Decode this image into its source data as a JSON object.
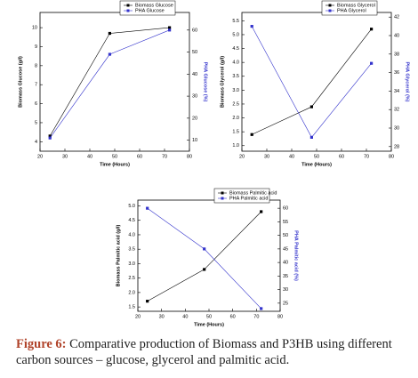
{
  "chart_data": [
    {
      "type": "line",
      "x": [
        24,
        48,
        72
      ],
      "xlim": [
        20,
        80
      ],
      "xticks": [
        20,
        30,
        40,
        50,
        60,
        70,
        80
      ],
      "xlabel": "Time (Hours)",
      "ylabel": "Biomass Glucose (g/l)",
      "y2label": "PHA Glucose (%)",
      "ylim": [
        3.5,
        10.8
      ],
      "yticks": [
        4,
        5,
        6,
        7,
        8,
        9,
        10
      ],
      "y2lim": [
        5,
        68
      ],
      "y2ticks": [
        10,
        20,
        30,
        40,
        50,
        60
      ],
      "series": [
        {
          "name": "Biomass Glucose",
          "color": "#000000",
          "values": [
            4.3,
            9.7,
            10.0
          ]
        },
        {
          "name": "PHA Glucose",
          "color": "#3333cc",
          "axis": "y2",
          "values": [
            11,
            49,
            60
          ]
        }
      ]
    },
    {
      "type": "line",
      "x": [
        24,
        48,
        72
      ],
      "xlim": [
        20,
        80
      ],
      "xticks": [
        20,
        30,
        40,
        50,
        60,
        70,
        80
      ],
      "xlabel": "Time (Hours)",
      "ylabel": "Biomass Glycerol (g/l)",
      "y2label": "PHA Glycerol (%)",
      "ylim": [
        0.8,
        5.8
      ],
      "yticks": [
        {
          "value": 1,
          "label": "1.0"
        },
        1.5,
        {
          "value": 2,
          "label": "2.0"
        },
        2.5,
        {
          "value": 3,
          "label": "3.0"
        },
        3.5,
        {
          "value": 4,
          "label": "4.0"
        },
        4.5,
        {
          "value": 5,
          "label": "5.0"
        },
        5.5
      ],
      "y2lim": [
        27.5,
        42.5
      ],
      "y2ticks": [
        28,
        30,
        32,
        34,
        36,
        38,
        40,
        42
      ],
      "series": [
        {
          "name": "Biomass Glycerol",
          "color": "#000000",
          "values": [
            1.4,
            2.4,
            5.2
          ]
        },
        {
          "name": "PHA Glycerol",
          "color": "#3333cc",
          "axis": "y2",
          "values": [
            41,
            29,
            37
          ]
        }
      ]
    },
    {
      "type": "line",
      "x": [
        24,
        48,
        72
      ],
      "xlim": [
        20,
        80
      ],
      "xticks": [
        20,
        30,
        40,
        50,
        60,
        70,
        80
      ],
      "xlabel": "Time (Hours)",
      "ylabel": "Biomass Palmitic acid (g/l)",
      "y2label": "PHA Palmitic acid (%)",
      "ylim": [
        1.35,
        5.2
      ],
      "yticks": [
        1.5,
        {
          "value": 2,
          "label": "2.0"
        },
        2.5,
        {
          "value": 3,
          "label": "3.0"
        },
        3.5,
        {
          "value": 4,
          "label": "4.0"
        },
        4.5,
        {
          "value": 5,
          "label": "5.0"
        }
      ],
      "y2lim": [
        22,
        63
      ],
      "y2ticks": [
        25,
        30,
        35,
        40,
        45,
        50,
        55,
        60
      ],
      "series": [
        {
          "name": "Biomass Palmitic acid",
          "color": "#000000",
          "values": [
            1.7,
            2.8,
            4.8
          ]
        },
        {
          "name": "PHA Palmitic acid",
          "color": "#3333cc",
          "axis": "y2",
          "values": [
            60,
            45,
            23
          ]
        }
      ]
    }
  ],
  "caption": {
    "label": "Figure 6:",
    "text": "Comparative production of Biomass and P3HB using different carbon sources – glucose, glycerol and palmitic acid."
  }
}
